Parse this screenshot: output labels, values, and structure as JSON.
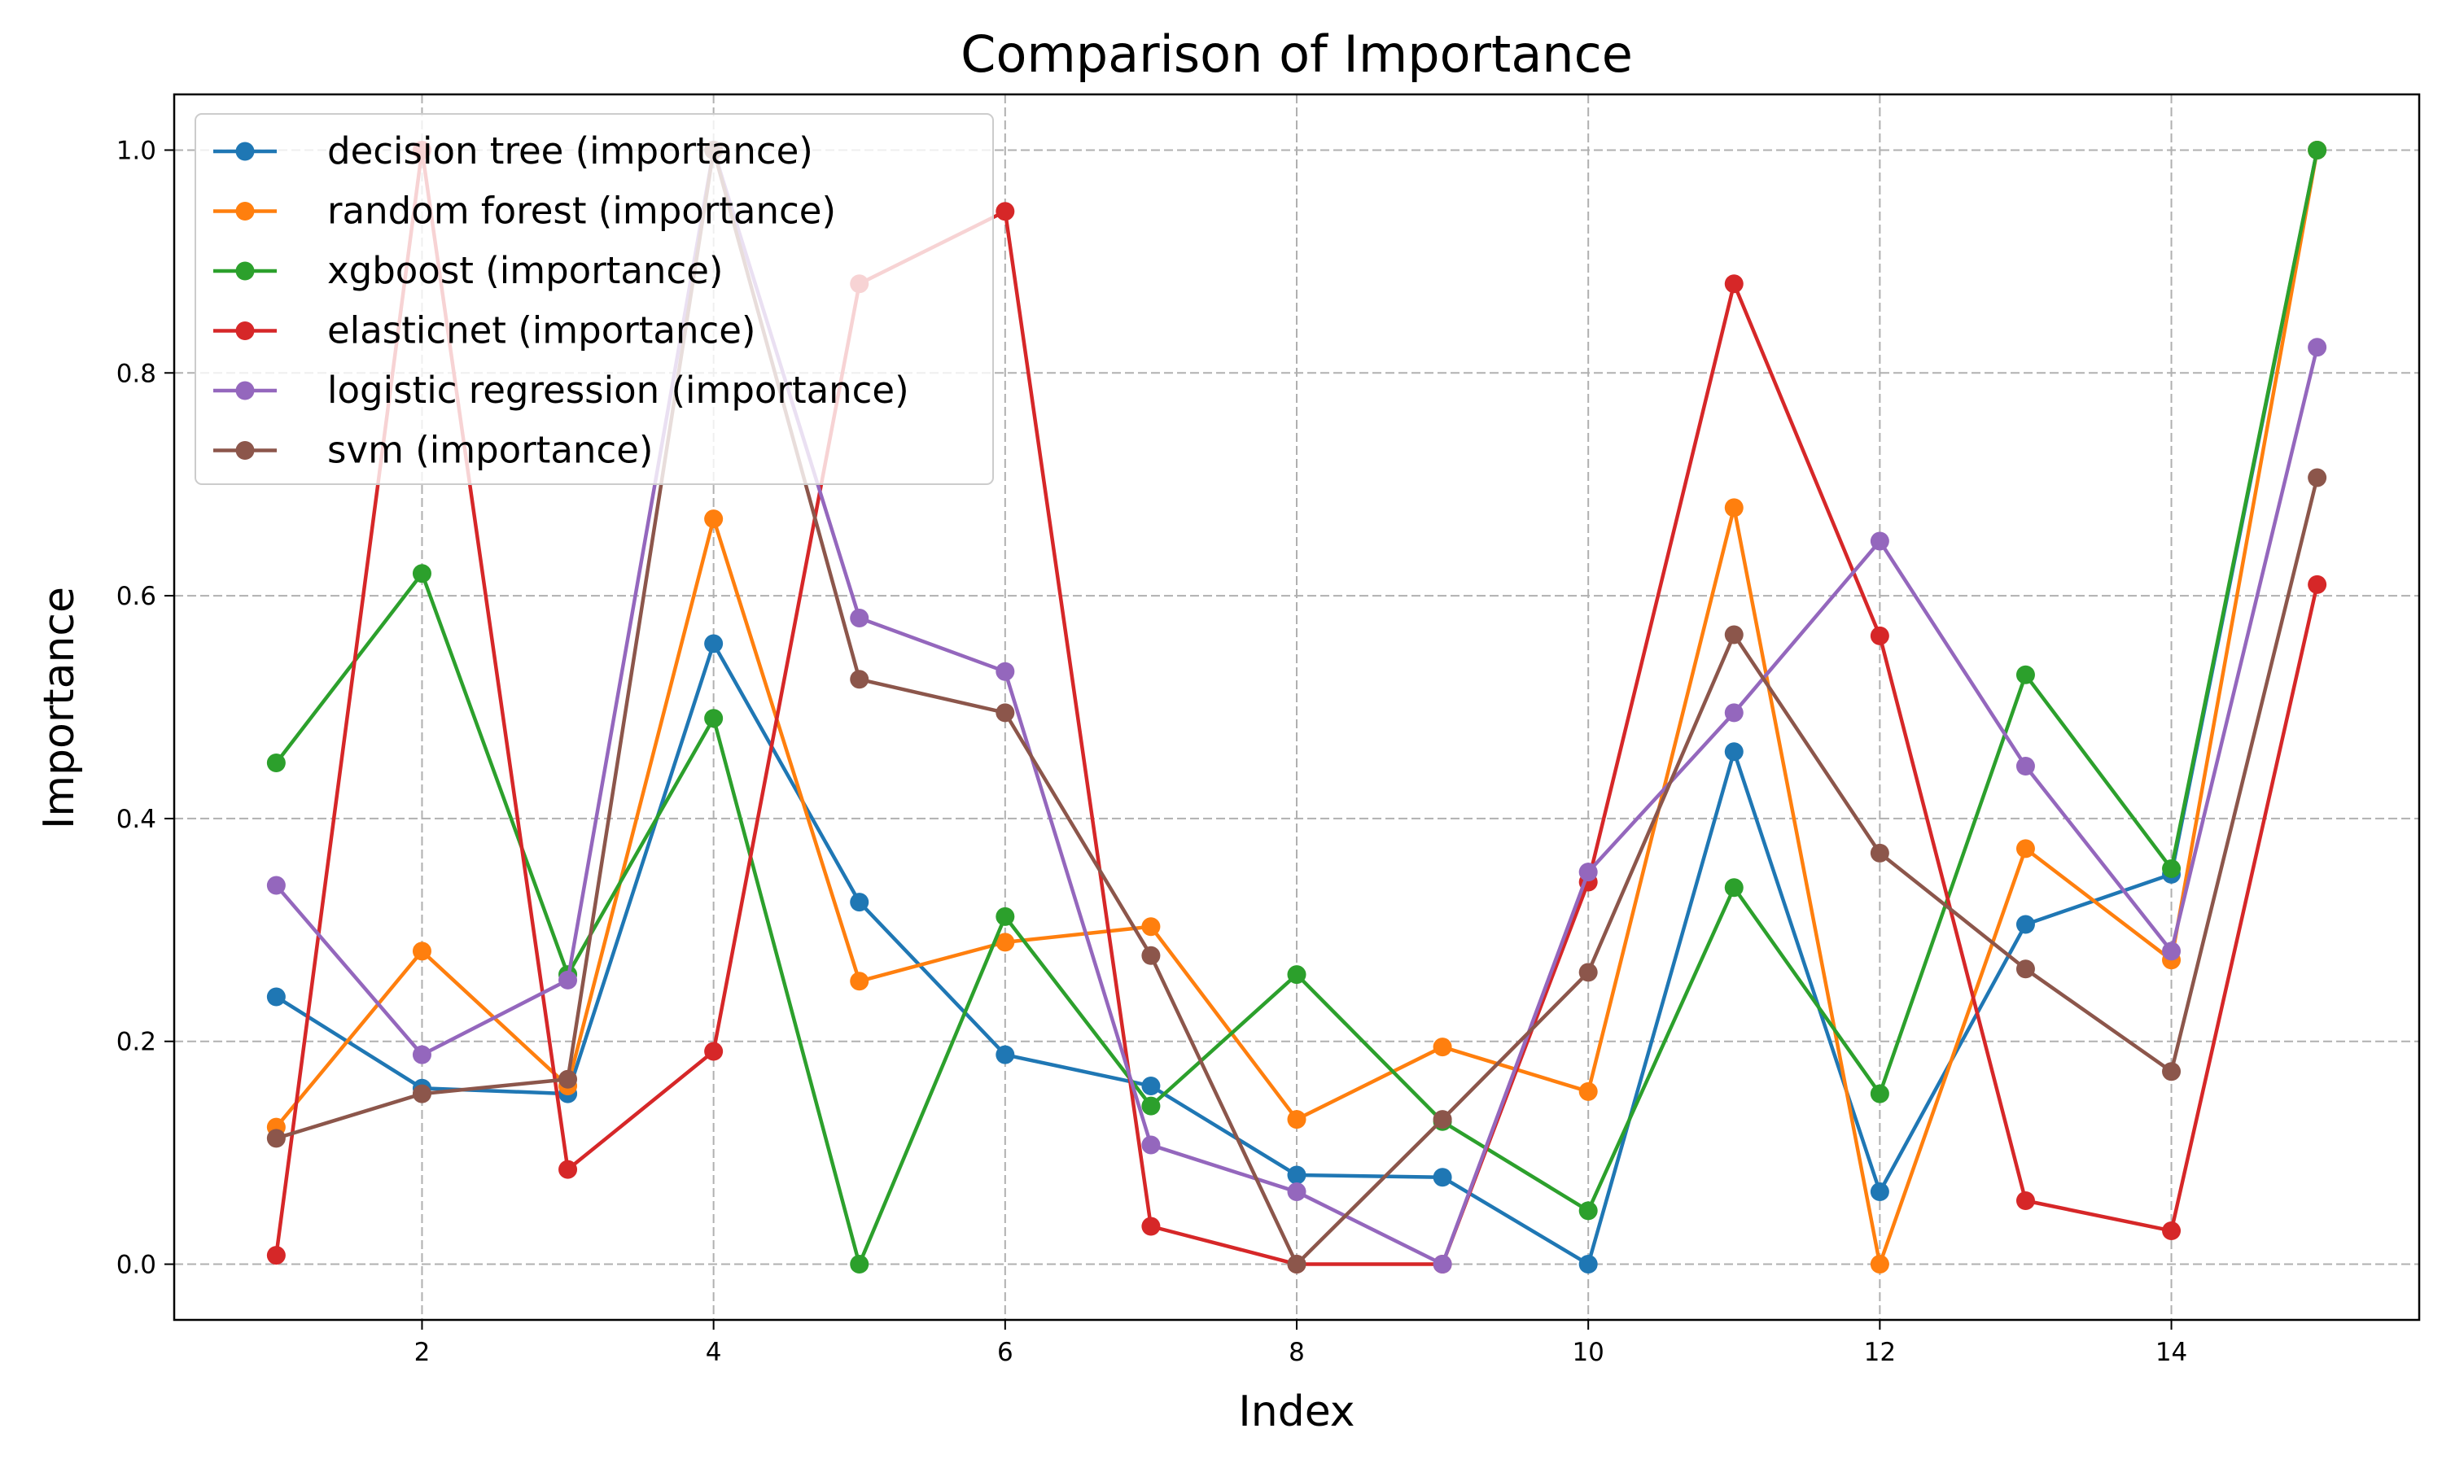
{
  "chart_data": {
    "type": "line",
    "title": "Comparison of Importance",
    "xlabel": "Index",
    "ylabel": "Importance",
    "xlim": [
      0.3,
      15.7
    ],
    "ylim": [
      -0.05,
      1.05
    ],
    "xticks": [
      2,
      4,
      6,
      8,
      10,
      12,
      14
    ],
    "yticks": [
      0.0,
      0.2,
      0.4,
      0.6,
      0.8,
      1.0
    ],
    "ytick_labels": [
      "0.0",
      "0.2",
      "0.4",
      "0.6",
      "0.8",
      "1.0"
    ],
    "grid": true,
    "legend_position": "upper-left",
    "x": [
      1,
      2,
      3,
      4,
      5,
      6,
      7,
      8,
      9,
      10,
      11,
      12,
      13,
      14,
      15
    ],
    "series": [
      {
        "name": "decision tree (importance)",
        "color": "#1f77b4",
        "values": [
          0.24,
          0.158,
          0.153,
          0.557,
          0.325,
          0.188,
          0.16,
          0.08,
          0.078,
          0.0,
          0.46,
          0.065,
          0.305,
          0.35,
          1.0
        ]
      },
      {
        "name": "random forest (importance)",
        "color": "#ff7f0e",
        "values": [
          0.123,
          0.281,
          0.16,
          0.669,
          0.254,
          0.289,
          0.303,
          0.13,
          0.195,
          0.155,
          0.679,
          0.0,
          0.373,
          0.273,
          1.0
        ]
      },
      {
        "name": "xgboost (importance)",
        "color": "#2ca02c",
        "values": [
          0.45,
          0.62,
          0.26,
          0.49,
          0.0,
          0.312,
          0.142,
          0.26,
          0.128,
          0.048,
          0.338,
          0.153,
          0.529,
          0.355,
          1.0
        ]
      },
      {
        "name": "elasticnet (importance)",
        "color": "#d62728",
        "values": [
          0.008,
          1.0,
          0.085,
          0.191,
          0.88,
          0.945,
          0.034,
          0.0,
          0.0,
          0.343,
          0.88,
          0.564,
          0.057,
          0.03,
          0.61
        ]
      },
      {
        "name": "logistic regression (importance)",
        "color": "#9467bd",
        "values": [
          0.34,
          0.188,
          0.255,
          1.0,
          0.58,
          0.532,
          0.107,
          0.065,
          0.0,
          0.352,
          0.495,
          0.649,
          0.447,
          0.281,
          0.823
        ]
      },
      {
        "name": "svm (importance)",
        "color": "#8c564b",
        "values": [
          0.113,
          0.153,
          0.166,
          1.0,
          0.525,
          0.495,
          0.277,
          0.0,
          0.13,
          0.262,
          0.565,
          0.369,
          0.265,
          0.173,
          0.706
        ]
      }
    ]
  }
}
